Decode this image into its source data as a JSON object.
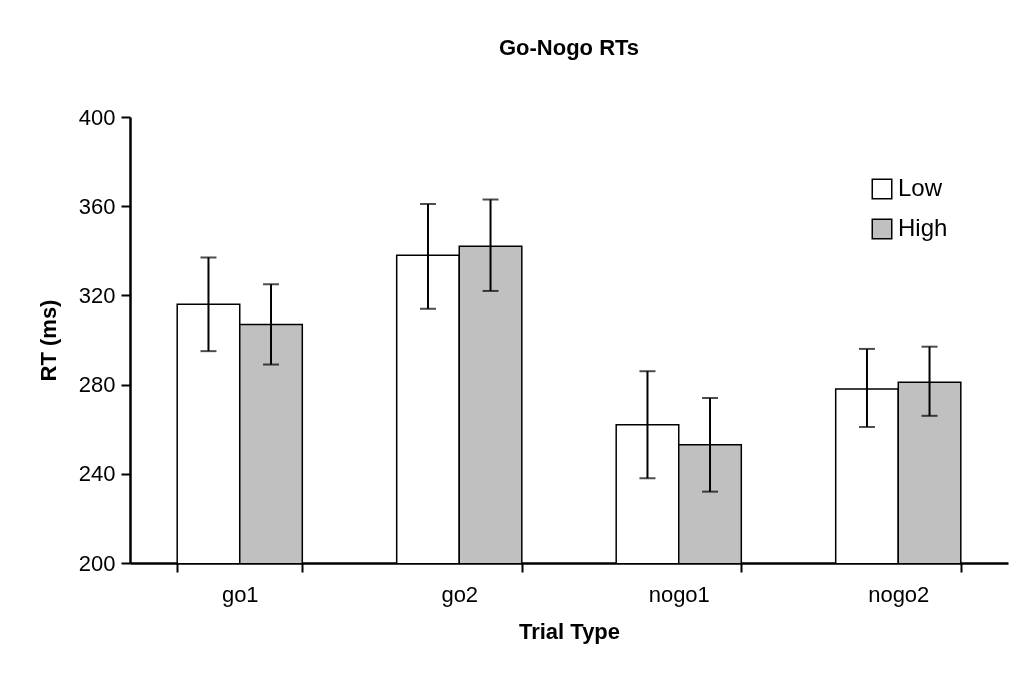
{
  "chart_data": {
    "type": "bar",
    "title": "Go-Nogo RTs",
    "xlabel": "Trial Type",
    "ylabel": "RT (ms)",
    "categories": [
      "go1",
      "go2",
      "nogo1",
      "nogo2"
    ],
    "series": [
      {
        "name": "Low",
        "color": "#ffffff",
        "values": [
          316,
          338,
          262,
          278
        ],
        "errors": [
          [
            295,
            337
          ],
          [
            314,
            361
          ],
          [
            238,
            286
          ],
          [
            261,
            296
          ]
        ]
      },
      {
        "name": "High",
        "color": "#c0c0c0",
        "values": [
          307,
          342,
          253,
          281
        ],
        "errors": [
          [
            289,
            325
          ],
          [
            322,
            363
          ],
          [
            232,
            274
          ],
          [
            266,
            297
          ]
        ]
      }
    ],
    "ylim": [
      200,
      400
    ],
    "yticks": [
      200,
      240,
      280,
      320,
      360,
      400
    ],
    "legend": "top right",
    "grid": false
  }
}
